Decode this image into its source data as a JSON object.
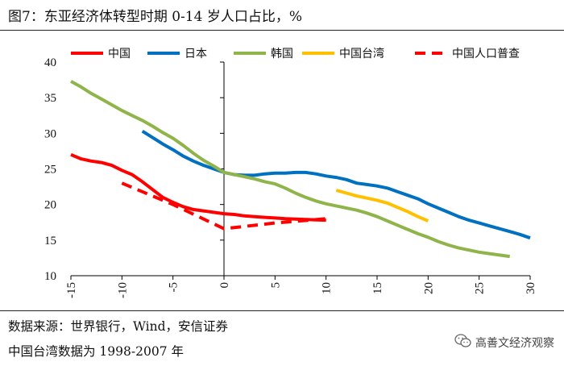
{
  "header": {
    "title": "图7：东亚经济体转型时期 0-14 岁人口占比，%"
  },
  "footer": {
    "source": "数据来源：世界银行，Wind，安信证券",
    "note": "中国台湾数据为 1998-2007 年"
  },
  "watermark": {
    "text": "高善文经济观察",
    "icon": "wechat-icon"
  },
  "chart_data": {
    "type": "line",
    "title": "东亚经济体转型时期 0-14 岁人口占比，%",
    "xlabel": "",
    "ylabel": "",
    "xlim": [
      -15,
      30
    ],
    "ylim": [
      10,
      40
    ],
    "xticks": [
      -15,
      -10,
      -5,
      0,
      5,
      10,
      15,
      20,
      25,
      30
    ],
    "yticks": [
      10,
      15,
      20,
      25,
      30,
      35,
      40
    ],
    "xtick_labels": [
      "-15",
      "-10",
      "-5",
      "0",
      "5",
      "10",
      "15",
      "20",
      "25",
      "30"
    ],
    "ytick_labels": [
      "10",
      "15",
      "20",
      "25",
      "30",
      "35",
      "40"
    ],
    "legend_position": "top",
    "series": [
      {
        "name": "中国",
        "color": "#ff0000",
        "dash": "solid",
        "x": [
          -15,
          -14,
          -13,
          -12,
          -11,
          -10,
          -9,
          -8,
          -7,
          -6,
          -5,
          -4,
          -3,
          -2,
          -1,
          0,
          1,
          2,
          3,
          4,
          5,
          6,
          7,
          8,
          9,
          10
        ],
        "y": [
          27.0,
          26.4,
          26.1,
          25.9,
          25.5,
          24.8,
          24.2,
          23.2,
          22.1,
          21.0,
          20.3,
          19.7,
          19.3,
          19.1,
          18.9,
          18.7,
          18.6,
          18.4,
          18.3,
          18.2,
          18.1,
          18.0,
          17.95,
          17.9,
          17.85,
          17.8
        ]
      },
      {
        "name": "日本",
        "color": "#0070c0",
        "dash": "solid",
        "x": [
          -8,
          -7,
          -6,
          -5,
          -4,
          -3,
          -2,
          -1,
          0,
          1,
          2,
          3,
          4,
          5,
          6,
          7,
          8,
          9,
          10,
          11,
          12,
          13,
          14,
          15,
          16,
          17,
          18,
          19,
          20,
          21,
          22,
          23,
          24,
          25,
          26,
          27,
          28,
          29,
          30
        ],
        "y": [
          30.3,
          29.4,
          28.5,
          27.7,
          26.8,
          26.1,
          25.5,
          25.0,
          24.5,
          24.2,
          24.1,
          24.1,
          24.3,
          24.4,
          24.4,
          24.5,
          24.5,
          24.3,
          24.0,
          23.8,
          23.5,
          23.0,
          22.8,
          22.6,
          22.3,
          21.8,
          21.3,
          20.8,
          20.1,
          19.5,
          18.9,
          18.3,
          17.8,
          17.4,
          17.0,
          16.6,
          16.2,
          15.8,
          15.3
        ]
      },
      {
        "name": "韩国",
        "color": "#8fb44a",
        "dash": "solid",
        "x": [
          -15,
          -14,
          -13,
          -12,
          -11,
          -10,
          -9,
          -8,
          -7,
          -6,
          -5,
          -4,
          -3,
          -2,
          -1,
          0,
          1,
          2,
          3,
          4,
          5,
          6,
          7,
          8,
          9,
          10,
          11,
          12,
          13,
          14,
          15,
          16,
          17,
          18,
          19,
          20,
          21,
          22,
          23,
          24,
          25,
          26,
          27,
          28
        ],
        "y": [
          37.3,
          36.5,
          35.6,
          34.8,
          34.0,
          33.2,
          32.5,
          31.8,
          31.0,
          30.1,
          29.3,
          28.3,
          27.2,
          26.2,
          25.4,
          24.5,
          24.2,
          23.9,
          23.6,
          23.2,
          22.9,
          22.3,
          21.6,
          21.0,
          20.5,
          20.1,
          19.8,
          19.5,
          19.2,
          18.8,
          18.3,
          17.7,
          17.1,
          16.5,
          15.9,
          15.4,
          14.8,
          14.3,
          13.9,
          13.6,
          13.3,
          13.1,
          12.9,
          12.7
        ]
      },
      {
        "name": "中国台湾",
        "color": "#ffc000",
        "dash": "solid",
        "x": [
          11,
          12,
          13,
          14,
          15,
          16,
          17,
          18,
          19,
          20
        ],
        "y": [
          22.0,
          21.6,
          21.2,
          20.9,
          20.6,
          20.2,
          19.6,
          19.0,
          18.3,
          17.7
        ]
      },
      {
        "name": "中国人口普查",
        "color": "#ff0000",
        "dash": "dashed",
        "x": [
          -10,
          -5,
          0,
          5,
          10
        ],
        "y": [
          23.0,
          20.0,
          16.6,
          17.4,
          18.0
        ]
      }
    ]
  }
}
